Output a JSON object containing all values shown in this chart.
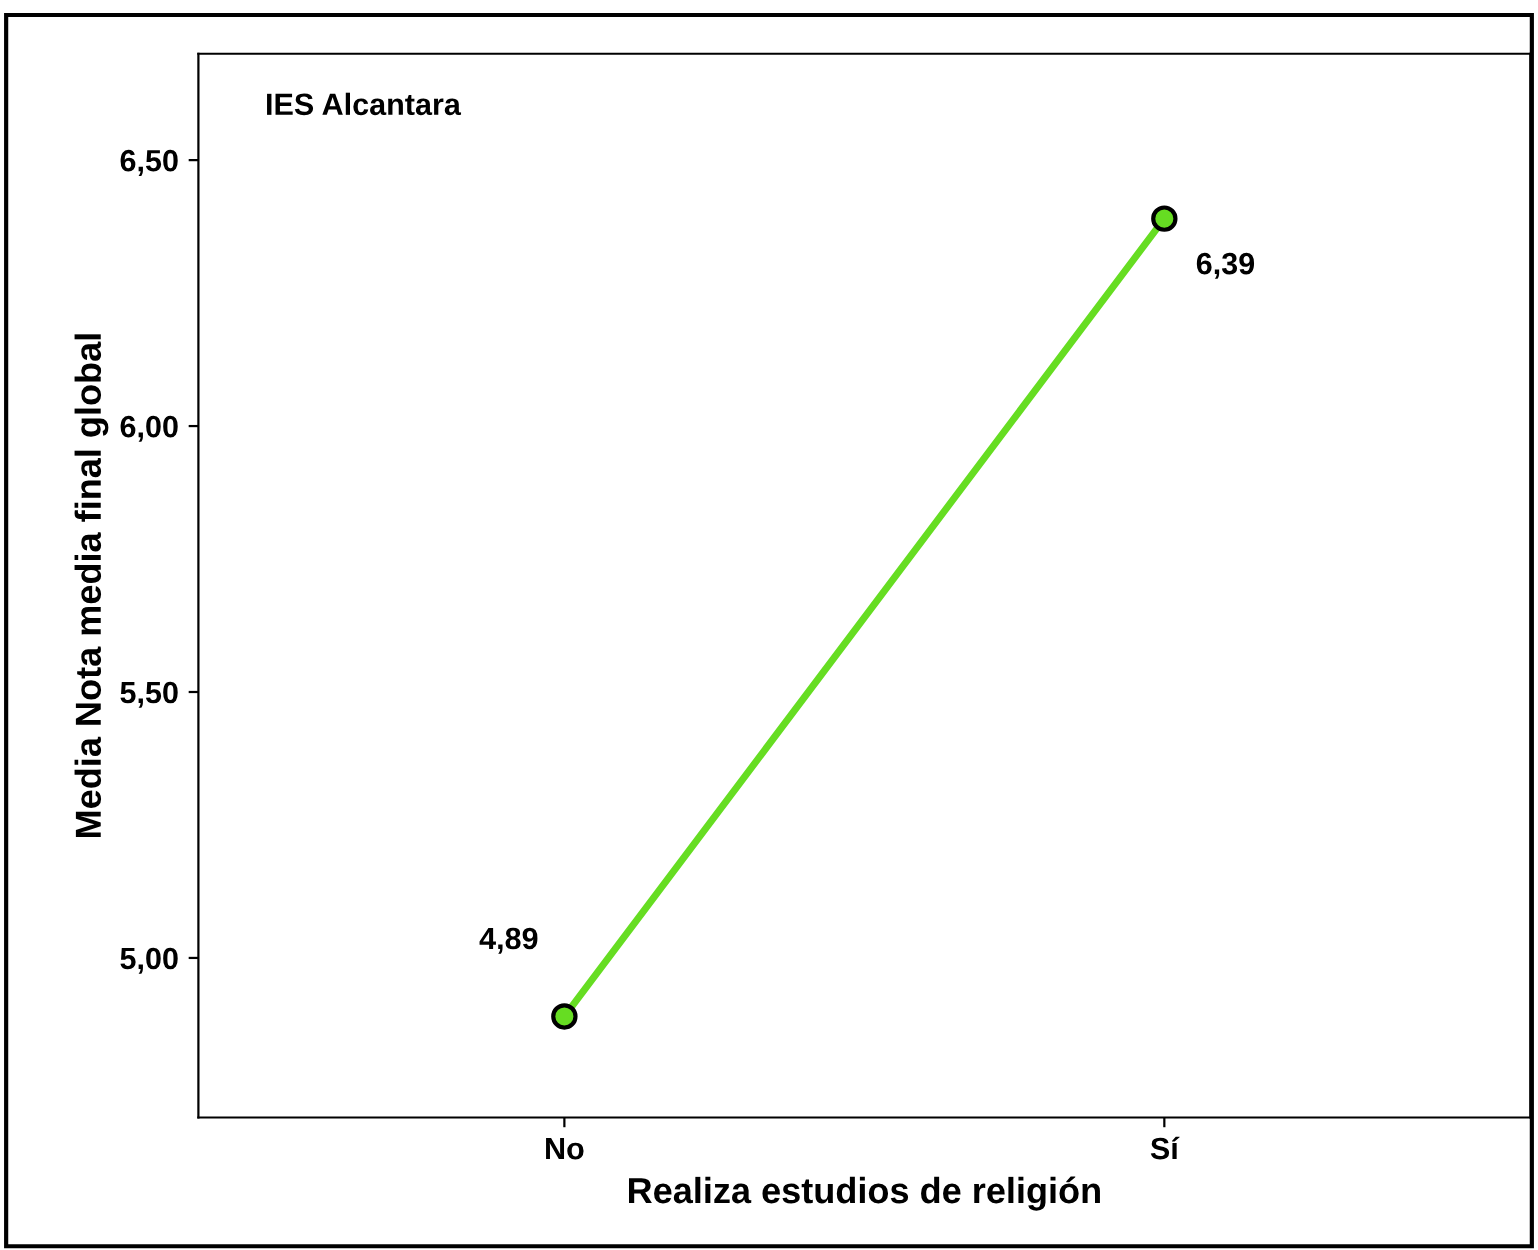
{
  "chart_data": {
    "type": "line",
    "xlabel": "Realiza estudios de religión",
    "ylabel": "Media Nota media final global",
    "annotations": [
      "IES Alcantara"
    ],
    "categories": [
      "No",
      "Sí"
    ],
    "series": [
      {
        "color": "#66dd22",
        "values": [
          4.89,
          6.39
        ],
        "value_labels": [
          "4,89",
          "6,39"
        ]
      }
    ],
    "ylim": [
      4.7,
      6.7
    ],
    "yticks": [
      {
        "value": 5.0,
        "label": "5,00"
      },
      {
        "value": 5.5,
        "label": "5,50"
      },
      {
        "value": 6.0,
        "label": "6,00"
      },
      {
        "value": 6.5,
        "label": "6,50"
      }
    ],
    "marker": "circle",
    "line_style": "solid",
    "grid": false,
    "legend": false
  }
}
